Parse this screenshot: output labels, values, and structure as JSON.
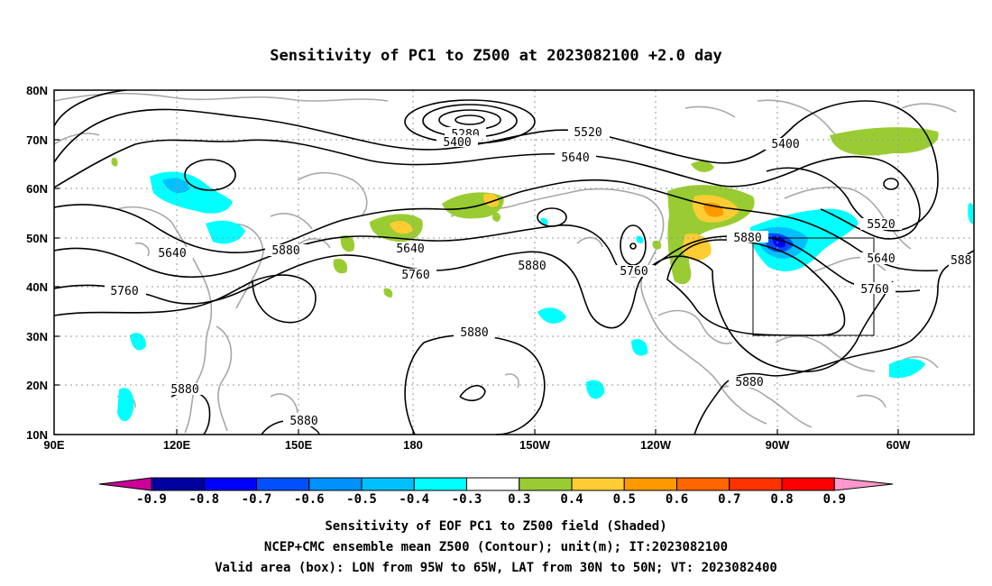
{
  "title": "Sensitivity of PC1 to Z500 at 2023082100 +2.0 day",
  "lat_ticks": [
    "80N",
    "70N",
    "60N",
    "50N",
    "40N",
    "30N",
    "20N",
    "10N"
  ],
  "lon_ticks": [
    "90E",
    "120E",
    "150E",
    "180",
    "150W",
    "120W",
    "90W",
    "60W"
  ],
  "contour_labels": [
    {
      "text": "5280"
    },
    {
      "text": "5400"
    },
    {
      "text": "5520"
    },
    {
      "text": "5640"
    },
    {
      "text": "5400"
    },
    {
      "text": "5640"
    },
    {
      "text": "5880"
    },
    {
      "text": "5640"
    },
    {
      "text": "5760"
    },
    {
      "text": "5760"
    },
    {
      "text": "5880"
    },
    {
      "text": "5760"
    },
    {
      "text": "5880"
    },
    {
      "text": "5520"
    },
    {
      "text": "5640"
    },
    {
      "text": "5760"
    },
    {
      "text": "5880"
    },
    {
      "text": "5880"
    },
    {
      "text": "5880"
    },
    {
      "text": "5880"
    },
    {
      "text": "588"
    }
  ],
  "colorbar": {
    "labels": [
      "-0.9",
      "-0.8",
      "-0.7",
      "-0.6",
      "-0.5",
      "-0.4",
      "-0.3",
      "0.3",
      "0.4",
      "0.5",
      "0.6",
      "0.7",
      "0.8",
      "0.9"
    ],
    "colors": [
      "#0000a0",
      "#0000ff",
      "#0050ff",
      "#0090ff",
      "#00c0ff",
      "#00ffff",
      "#ffffff",
      "#99cc33",
      "#ffcc33",
      "#ff9900",
      "#ff6600",
      "#ff3300",
      "#ff0000"
    ],
    "low_end_color": "#cc0099",
    "high_end_color": "#ff99cc"
  },
  "captions": [
    "Sensitivity of EOF PC1 to Z500 field (Shaded)",
    "NCEP+CMC ensemble mean Z500 (Contour); unit(m); IT:2023082100",
    "Valid area (box): LON from 95W to 65W, LAT from 30N to 50N; VT: 2023082400"
  ]
}
